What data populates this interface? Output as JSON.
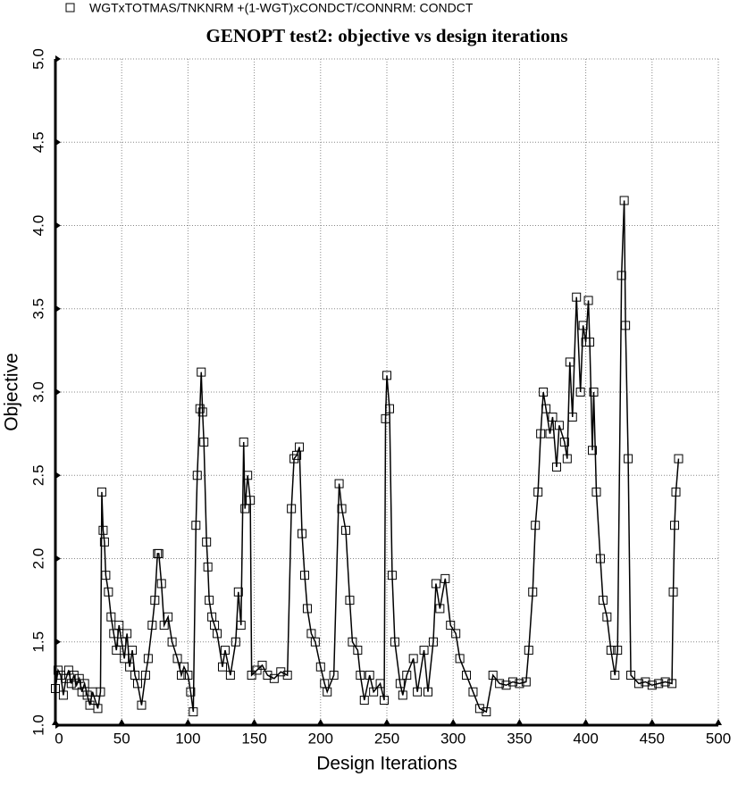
{
  "chart_data": {
    "type": "line",
    "title": "GENOPT test2: objective vs design iterations",
    "x_label": "Design Iterations",
    "y_label": "Objective",
    "xlim": [
      0,
      500
    ],
    "xticks": [
      0,
      50,
      100,
      150,
      200,
      250,
      300,
      350,
      400,
      450,
      500
    ],
    "ylim": [
      1.0,
      5.0
    ],
    "yticks": [
      {
        "value": 1.0,
        "label": "1.0"
      },
      1.5,
      {
        "value": 2.0,
        "label": "2.0"
      },
      2.5,
      {
        "value": 3.0,
        "label": "3.0"
      },
      3.5,
      {
        "value": 4.0,
        "label": "4.0"
      },
      4.5,
      {
        "value": 5.0,
        "label": "5.0"
      }
    ],
    "grid": true,
    "legend": "top-left",
    "x": [
      0,
      2,
      4,
      6,
      8,
      10,
      12,
      14,
      16,
      18,
      20,
      22,
      24,
      26,
      28,
      30,
      32,
      34,
      35,
      36,
      37,
      38,
      40,
      42,
      44,
      46,
      48,
      50,
      52,
      54,
      56,
      58,
      60,
      62,
      65,
      68,
      70,
      73,
      75,
      77,
      78,
      80,
      82,
      85,
      88,
      92,
      95,
      97,
      100,
      102,
      104,
      106,
      107,
      109,
      110,
      111,
      112,
      114,
      115,
      116,
      118,
      120,
      122,
      126,
      128,
      132,
      136,
      138,
      140,
      142,
      143,
      145,
      147,
      148,
      152,
      156,
      160,
      165,
      170,
      175,
      178,
      180,
      182,
      184,
      186,
      188,
      190,
      193,
      196,
      200,
      203,
      205,
      210,
      214,
      216,
      219,
      222,
      224,
      228,
      230,
      233,
      237,
      240,
      245,
      248,
      249,
      250,
      252,
      254,
      256,
      260,
      262,
      265,
      270,
      273,
      278,
      281,
      285,
      287,
      290,
      294,
      298,
      302,
      305,
      310,
      315,
      320,
      325,
      330,
      335,
      340,
      345,
      350,
      355,
      357,
      360,
      362,
      364,
      366,
      368,
      370,
      373,
      375,
      378,
      380,
      384,
      386,
      388,
      390,
      393,
      396,
      398,
      400,
      402,
      403,
      405,
      406,
      408,
      411,
      413,
      416,
      419,
      422,
      424,
      427,
      429,
      430,
      432,
      434,
      440,
      445,
      450,
      455,
      460,
      465,
      466,
      467,
      468,
      470
    ],
    "series": [
      {
        "name": "WGTxTOTMAS/TNKNRM +(1-WGT)xCONDCT/CONNRM: CONDCT",
        "color": "#000000",
        "values": [
          1.22,
          1.33,
          1.3,
          1.18,
          1.28,
          1.33,
          1.25,
          1.3,
          1.24,
          1.28,
          1.2,
          1.25,
          1.18,
          1.12,
          1.2,
          1.15,
          1.1,
          1.2,
          2.4,
          2.17,
          2.1,
          1.9,
          1.8,
          1.65,
          1.55,
          1.45,
          1.6,
          1.5,
          1.4,
          1.55,
          1.35,
          1.45,
          1.3,
          1.25,
          1.12,
          1.3,
          1.4,
          1.6,
          1.75,
          2.03,
          2.03,
          1.85,
          1.6,
          1.65,
          1.5,
          1.4,
          1.3,
          1.35,
          1.3,
          1.2,
          1.08,
          2.2,
          2.5,
          2.9,
          3.12,
          2.88,
          2.7,
          2.1,
          1.95,
          1.75,
          1.65,
          1.6,
          1.55,
          1.35,
          1.45,
          1.3,
          1.5,
          1.8,
          1.6,
          2.7,
          2.3,
          2.5,
          2.35,
          1.3,
          1.33,
          1.36,
          1.3,
          1.28,
          1.32,
          1.3,
          2.3,
          2.6,
          2.62,
          2.67,
          2.15,
          1.9,
          1.7,
          1.55,
          1.5,
          1.35,
          1.25,
          1.2,
          1.3,
          2.45,
          2.3,
          2.17,
          1.75,
          1.5,
          1.45,
          1.3,
          1.15,
          1.3,
          1.2,
          1.25,
          1.15,
          2.84,
          3.1,
          2.9,
          1.9,
          1.5,
          1.25,
          1.18,
          1.3,
          1.4,
          1.2,
          1.45,
          1.2,
          1.5,
          1.85,
          1.7,
          1.88,
          1.6,
          1.55,
          1.4,
          1.3,
          1.2,
          1.1,
          1.08,
          1.3,
          1.25,
          1.24,
          1.26,
          1.25,
          1.26,
          1.45,
          1.8,
          2.2,
          2.4,
          2.75,
          3.0,
          2.9,
          2.75,
          2.85,
          2.55,
          2.8,
          2.7,
          2.6,
          3.18,
          2.85,
          3.57,
          3.0,
          3.4,
          3.3,
          3.55,
          3.3,
          2.65,
          3.0,
          2.4,
          2.0,
          1.75,
          1.65,
          1.45,
          1.3,
          1.45,
          3.7,
          4.15,
          3.4,
          2.6,
          1.3,
          1.25,
          1.26,
          1.24,
          1.25,
          1.26,
          1.25,
          1.8,
          2.2,
          2.4,
          2.6
        ]
      }
    ]
  }
}
